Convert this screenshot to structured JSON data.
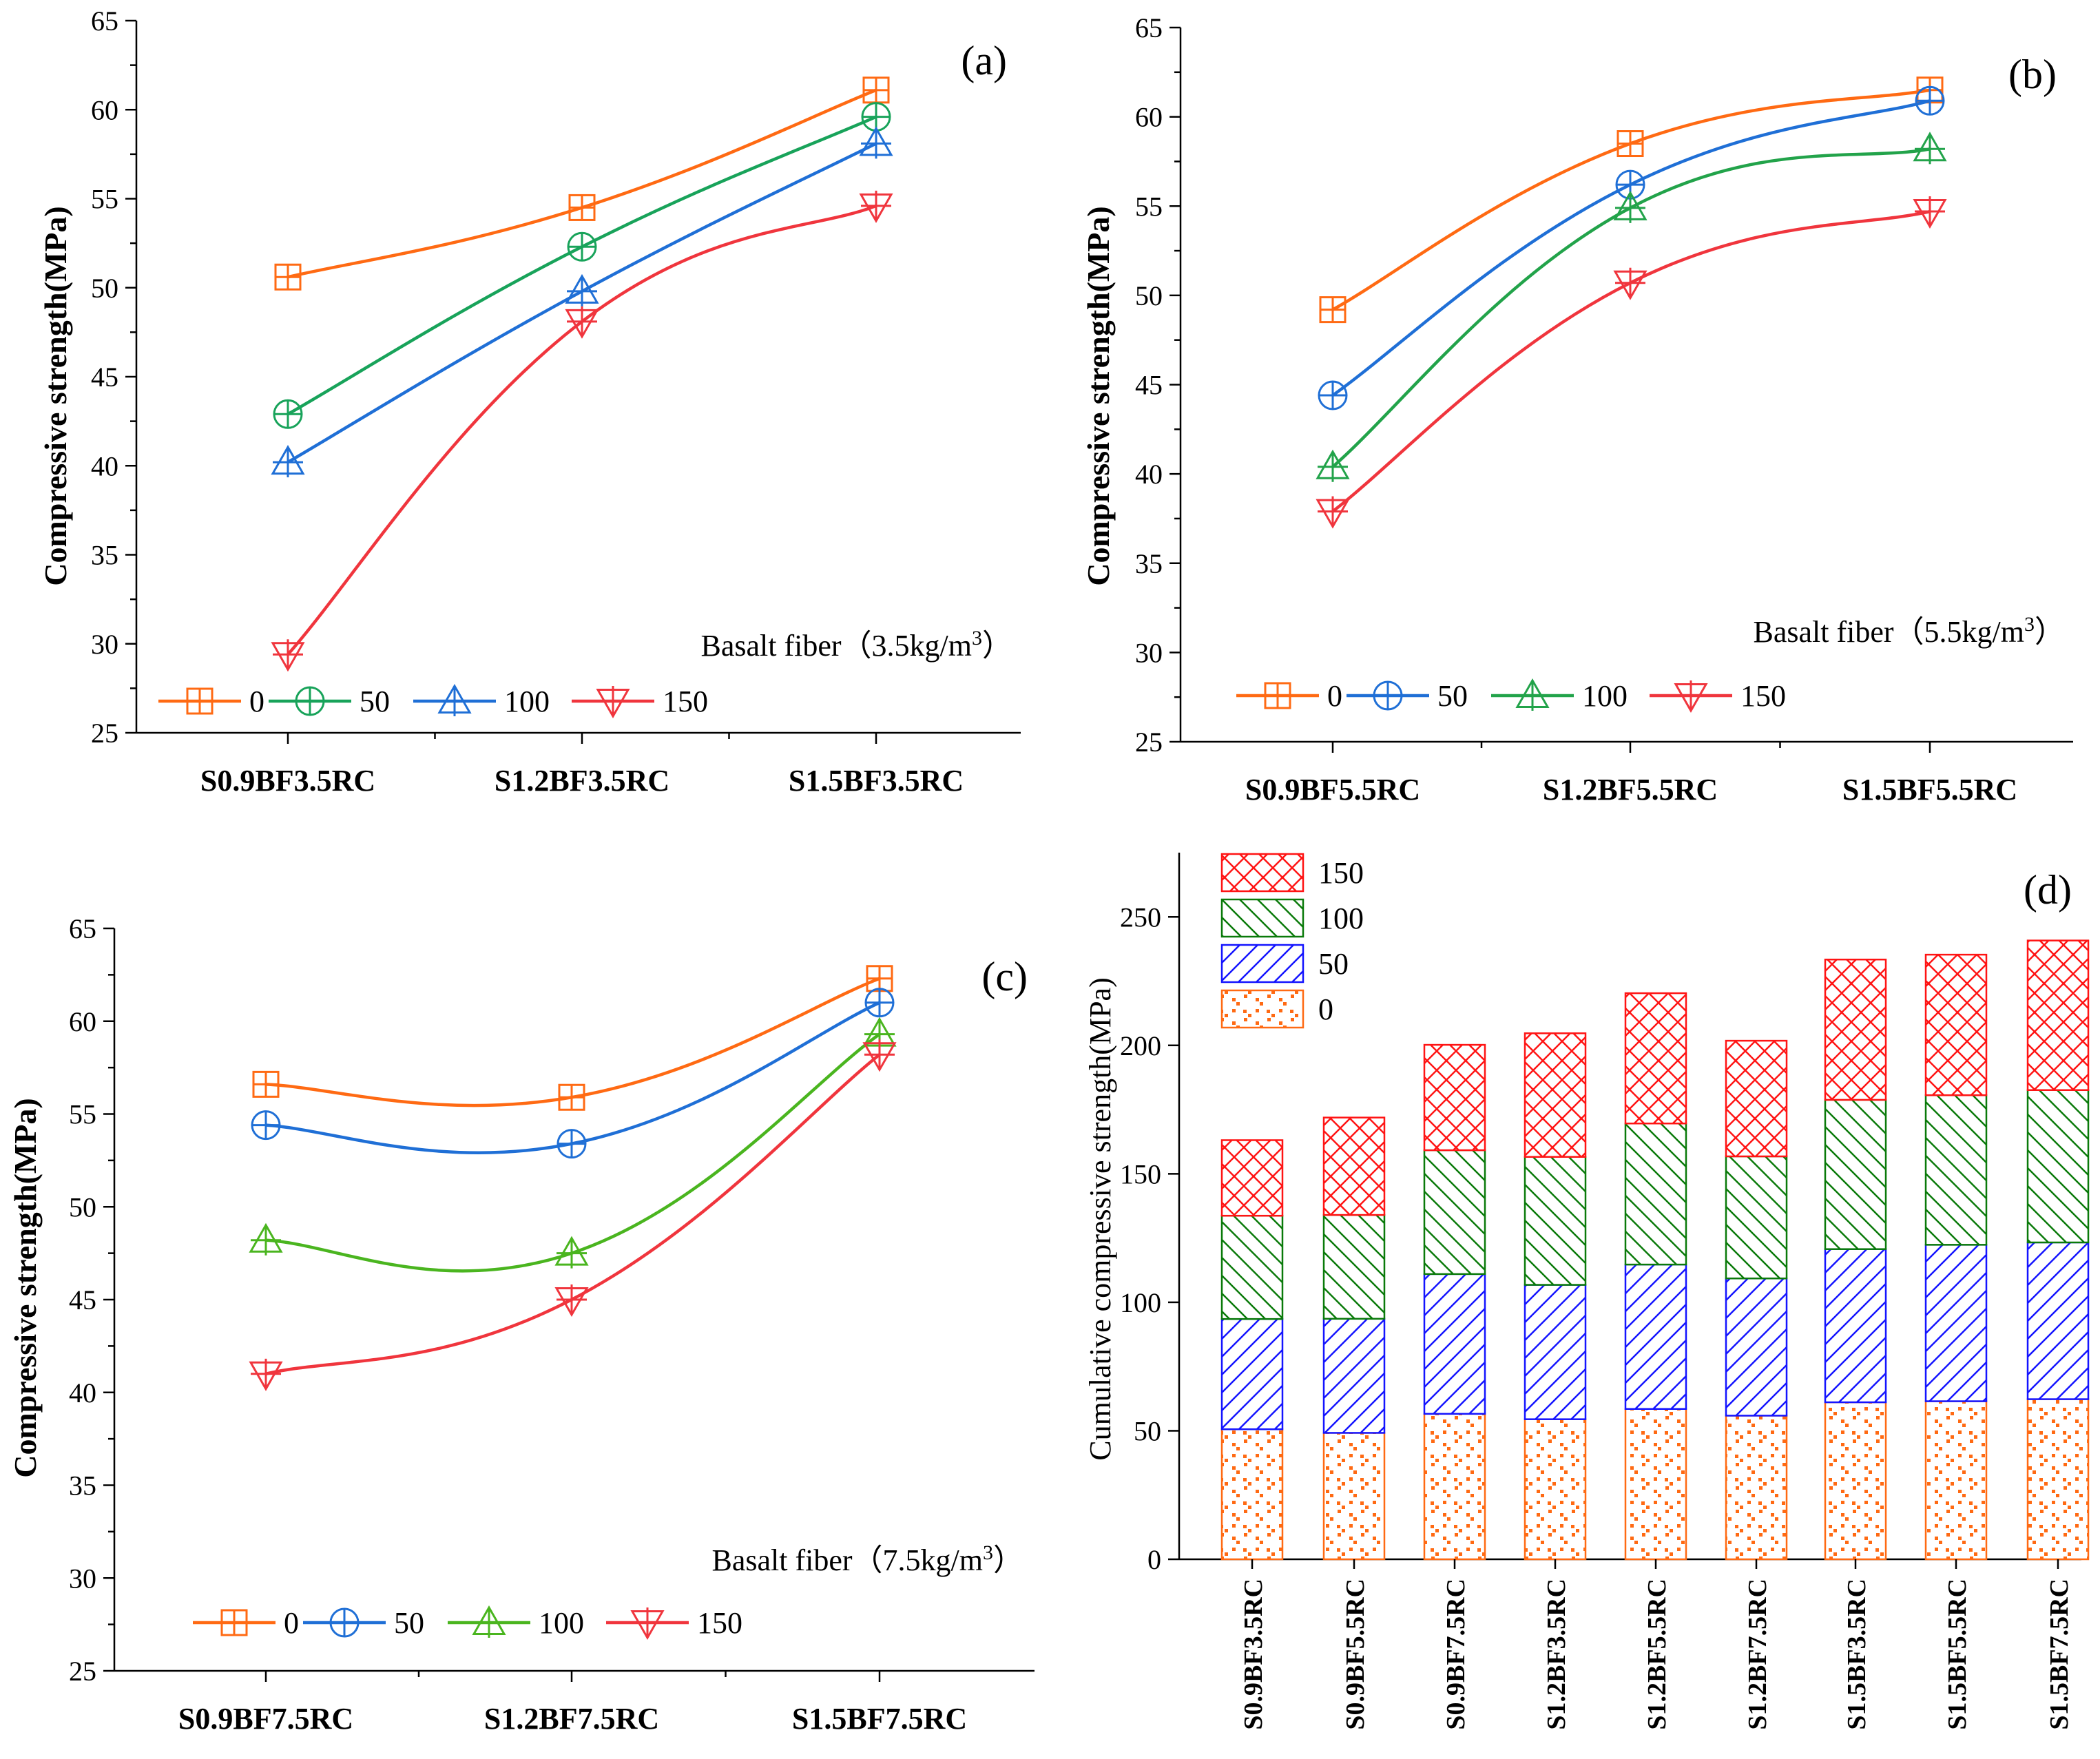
{
  "colors": {
    "s0": "#ff6a13",
    "s50_ab": "#18a35a",
    "s50_bc": "#1f6fd6",
    "s100_ab": "#1f6fd6",
    "s100_bc": "#22a34a",
    "s100_c": "#4ab51f",
    "s150": "#f0353d",
    "bar0": "#ff6a13",
    "bar50": "#1414ff",
    "bar100": "#0a7a0a",
    "bar150": "#ff1414"
  },
  "chart_data": [
    {
      "panel": "(a)",
      "type": "line",
      "ylabel": "Compressive strength(MPa)",
      "ylim": [
        25,
        65
      ],
      "yticks": [
        "25",
        "30",
        "35",
        "40",
        "45",
        "50",
        "55",
        "60",
        "65"
      ],
      "categories": [
        "S0.9BF3.5RC",
        "S1.2BF3.5RC",
        "S1.5BF3.5RC"
      ],
      "annotation": {
        "text": "Basalt fiber（3.5kg/m",
        "sup": "3",
        "close": "）"
      },
      "legend_labels": [
        "0",
        "50",
        "100",
        "150"
      ],
      "series": [
        {
          "name": "0",
          "marker": "square-plus",
          "color_key": "s0",
          "values": [
            50.6,
            54.5,
            61.1
          ]
        },
        {
          "name": "50",
          "marker": "circle-plus",
          "color_key": "s50_ab",
          "values": [
            42.9,
            52.3,
            59.6
          ]
        },
        {
          "name": "100",
          "marker": "triangle-up",
          "color_key": "s100_ab",
          "values": [
            40.2,
            49.8,
            58.1
          ]
        },
        {
          "name": "150",
          "marker": "triangle-down",
          "color_key": "s150",
          "values": [
            29.4,
            48.1,
            54.6
          ]
        }
      ]
    },
    {
      "panel": "(b)",
      "type": "line",
      "ylabel": "Compressive strength(MPa)",
      "ylim": [
        25,
        65
      ],
      "yticks": [
        "25",
        "30",
        "35",
        "40",
        "45",
        "50",
        "55",
        "60",
        "65"
      ],
      "categories": [
        "S0.9BF5.5RC",
        "S1.2BF5.5RC",
        "S1.5BF5.5RC"
      ],
      "annotation": {
        "text": "Basalt fiber（5.5kg/m",
        "sup": "3",
        "close": "）"
      },
      "legend_labels": [
        "0",
        "50",
        "100",
        "150"
      ],
      "series": [
        {
          "name": "0",
          "marker": "square-plus",
          "color_key": "s0",
          "values": [
            49.2,
            58.5,
            61.5
          ]
        },
        {
          "name": "50",
          "marker": "circle-plus",
          "color_key": "s50_bc",
          "values": [
            44.4,
            56.2,
            60.9
          ]
        },
        {
          "name": "100",
          "marker": "triangle-up",
          "color_key": "s100_bc",
          "values": [
            40.4,
            54.9,
            58.2
          ]
        },
        {
          "name": "150",
          "marker": "triangle-down",
          "color_key": "s150",
          "values": [
            37.9,
            50.7,
            54.7
          ]
        }
      ]
    },
    {
      "panel": "(c)",
      "type": "line",
      "ylabel": "Compressive strength(MPa)",
      "ylim": [
        25,
        65
      ],
      "yticks": [
        "25",
        "30",
        "35",
        "40",
        "45",
        "50",
        "55",
        "60",
        "65"
      ],
      "categories": [
        "S0.9BF7.5RC",
        "S1.2BF7.5RC",
        "S1.5BF7.5RC"
      ],
      "annotation": {
        "text": "Basalt fiber（7.5kg/m",
        "sup": "3",
        "close": "）"
      },
      "legend_labels": [
        "0",
        "50",
        "100",
        "150"
      ],
      "series": [
        {
          "name": "0",
          "marker": "square-plus",
          "color_key": "s0",
          "values": [
            56.6,
            55.9,
            62.3
          ]
        },
        {
          "name": "50",
          "marker": "circle-plus",
          "color_key": "s50_bc",
          "values": [
            54.4,
            53.4,
            61.0
          ]
        },
        {
          "name": "100",
          "marker": "triangle-up",
          "color_key": "s100_c",
          "values": [
            48.2,
            47.5,
            59.3
          ]
        },
        {
          "name": "150",
          "marker": "triangle-down",
          "color_key": "s150",
          "values": [
            41.0,
            45.0,
            58.2
          ]
        }
      ]
    },
    {
      "panel": "(d)",
      "type": "bar",
      "stacked": true,
      "ylabel": "Cumulative compressive strength(MPa)",
      "ylim": [
        0,
        275
      ],
      "yticks": [
        "0",
        "50",
        "100",
        "150",
        "200",
        "250"
      ],
      "categories": [
        "S0.9BF3.5RC",
        "S0.9BF5.5RC",
        "S0.9BF7.5RC",
        "S1.2BF3.5RC",
        "S1.2BF5.5RC",
        "S1.2BF7.5RC",
        "S1.5BF3.5RC",
        "S1.5BF5.5RC",
        "S1.5BF7.5RC"
      ],
      "legend_labels": [
        "150",
        "100",
        "50",
        "0"
      ],
      "series": [
        {
          "name": "0",
          "pattern": "dots",
          "color_key": "bar0",
          "values": [
            50.6,
            49.2,
            56.6,
            54.5,
            58.5,
            55.9,
            61.1,
            61.5,
            62.3
          ]
        },
        {
          "name": "50",
          "pattern": "diag",
          "color_key": "bar50",
          "values": [
            42.9,
            44.4,
            54.4,
            52.3,
            56.2,
            53.4,
            59.6,
            60.9,
            61.0
          ]
        },
        {
          "name": "100",
          "pattern": "diag-rev",
          "color_key": "bar100",
          "values": [
            40.2,
            40.4,
            48.2,
            49.8,
            54.9,
            47.5,
            58.1,
            58.2,
            59.3
          ]
        },
        {
          "name": "150",
          "pattern": "cross",
          "color_key": "bar150",
          "values": [
            29.4,
            37.9,
            41.0,
            48.1,
            50.7,
            45.0,
            54.6,
            54.7,
            58.2
          ]
        }
      ]
    }
  ]
}
